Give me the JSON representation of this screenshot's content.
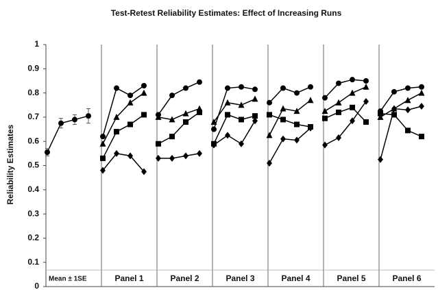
{
  "chart_data": {
    "type": "line",
    "title": "Test-Retest Reliability Estimates: Effect of Increasing Runs",
    "ylabel": "Reliability Estimates",
    "ylim": [
      0,
      1
    ],
    "yticks": [
      0,
      0.1,
      0.2,
      0.3,
      0.4,
      0.5,
      0.6,
      0.7,
      0.8,
      0.9,
      1
    ],
    "color": "#000000",
    "panels": [
      {
        "label": "Mean ± 1SE",
        "series": [
          {
            "marker": "circle",
            "values": [
              0.555,
              0.675,
              0.69,
              0.705
            ],
            "errors": [
              0.015,
              0.02,
              0.02,
              0.03
            ]
          }
        ]
      },
      {
        "label": "Panel 1",
        "series": [
          {
            "marker": "circle",
            "values": [
              0.62,
              0.82,
              0.79,
              0.83
            ]
          },
          {
            "marker": "triangle",
            "values": [
              0.59,
              0.7,
              0.76,
              0.8
            ]
          },
          {
            "marker": "square",
            "values": [
              0.53,
              0.64,
              0.67,
              0.71
            ]
          },
          {
            "marker": "diamond",
            "values": [
              0.48,
              0.55,
              0.54,
              0.475
            ]
          }
        ]
      },
      {
        "label": "Panel 2",
        "series": [
          {
            "marker": "circle",
            "values": [
              0.71,
              0.79,
              0.82,
              0.845
            ]
          },
          {
            "marker": "triangle",
            "values": [
              0.7,
              0.69,
              0.715,
              0.735
            ]
          },
          {
            "marker": "square",
            "values": [
              0.59,
              0.62,
              0.68,
              0.72
            ]
          },
          {
            "marker": "diamond",
            "values": [
              0.53,
              0.53,
              0.54,
              0.55
            ]
          }
        ]
      },
      {
        "label": "Panel 3",
        "series": [
          {
            "marker": "circle",
            "values": [
              0.65,
              0.82,
              0.825,
              0.815
            ]
          },
          {
            "marker": "triangle",
            "values": [
              0.68,
              0.76,
              0.75,
              0.775
            ]
          },
          {
            "marker": "square",
            "values": [
              0.59,
              0.71,
              0.69,
              0.705
            ]
          },
          {
            "marker": "diamond",
            "values": [
              0.585,
              0.625,
              0.59,
              0.685
            ]
          }
        ]
      },
      {
        "label": "Panel 4",
        "series": [
          {
            "marker": "circle",
            "values": [
              0.76,
              0.82,
              0.8,
              0.825
            ]
          },
          {
            "marker": "triangle",
            "values": [
              0.625,
              0.735,
              0.725,
              0.77
            ]
          },
          {
            "marker": "square",
            "values": [
              0.71,
              0.69,
              0.67,
              0.66
            ]
          },
          {
            "marker": "diamond",
            "values": [
              0.51,
              0.61,
              0.605,
              0.655
            ]
          }
        ]
      },
      {
        "label": "Panel 5",
        "series": [
          {
            "marker": "circle",
            "values": [
              0.78,
              0.84,
              0.855,
              0.85
            ]
          },
          {
            "marker": "triangle",
            "values": [
              0.725,
              0.76,
              0.8,
              0.825
            ]
          },
          {
            "marker": "square",
            "values": [
              0.695,
              0.72,
              0.74,
              0.68
            ]
          },
          {
            "marker": "diamond",
            "values": [
              0.585,
              0.615,
              0.685,
              0.765
            ]
          }
        ]
      },
      {
        "label": "Panel 6",
        "series": [
          {
            "marker": "circle",
            "values": [
              0.725,
              0.805,
              0.82,
              0.825
            ]
          },
          {
            "marker": "triangle",
            "values": [
              0.7,
              0.735,
              0.77,
              0.8
            ]
          },
          {
            "marker": "square",
            "values": [
              0.715,
              0.71,
              0.645,
              0.62
            ]
          },
          {
            "marker": "diamond",
            "values": [
              0.525,
              0.735,
              0.73,
              0.745
            ]
          }
        ]
      }
    ]
  }
}
